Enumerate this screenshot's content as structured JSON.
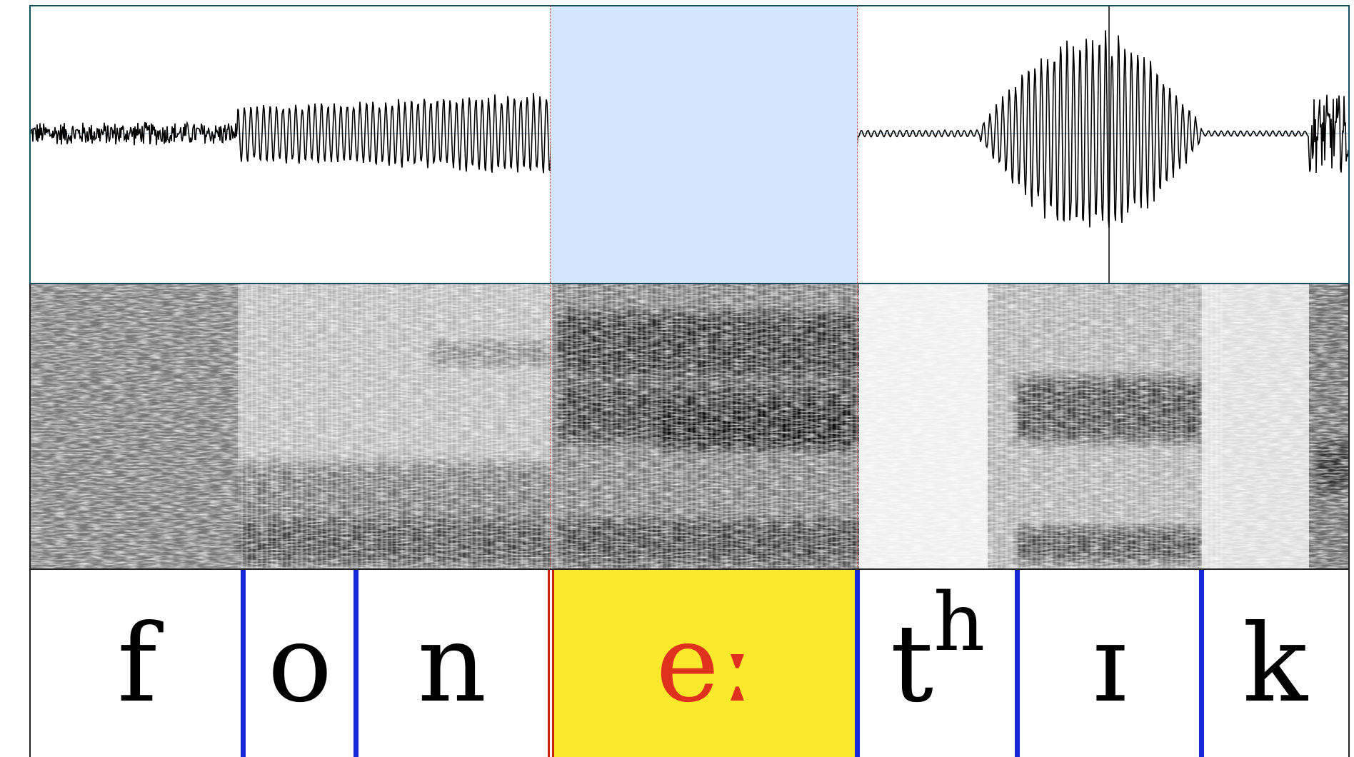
{
  "segments": [
    {
      "label": "f"
    },
    {
      "label": "o"
    },
    {
      "label": "n"
    },
    {
      "label": "eː",
      "selected": true
    },
    {
      "label": "t",
      "superscript": "h"
    },
    {
      "label": "ɪ"
    },
    {
      "label": "k"
    }
  ],
  "colors": {
    "selection_background": "#d3e6fb",
    "interval_highlight": "#fbea2c",
    "selected_label": "#e0301e",
    "boundary": "#1628d8",
    "selected_boundary": "#c7230f",
    "cursor": "#d03a3a",
    "waveform": "#000000",
    "frame": "#12505e"
  },
  "icons": {
    "waveform": "waveform-trace",
    "spectrogram": "spectrogram-image"
  }
}
